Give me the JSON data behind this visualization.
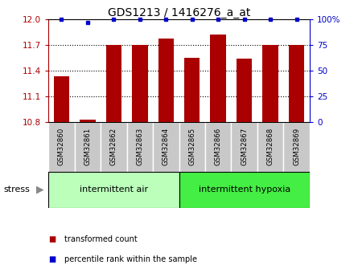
{
  "title": "GDS1213 / 1416276_a_at",
  "samples": [
    "GSM32860",
    "GSM32861",
    "GSM32862",
    "GSM32863",
    "GSM32864",
    "GSM32865",
    "GSM32866",
    "GSM32867",
    "GSM32868",
    "GSM32869"
  ],
  "bar_values": [
    11.33,
    10.83,
    11.7,
    11.7,
    11.78,
    11.55,
    11.82,
    11.54,
    11.7,
    11.7
  ],
  "percentile_values": [
    100,
    97,
    100,
    100,
    100,
    100,
    100,
    100,
    100,
    100
  ],
  "bar_color": "#aa0000",
  "percentile_color": "#0000cc",
  "ylim": [
    10.8,
    12.0
  ],
  "yticks_left": [
    10.8,
    11.1,
    11.4,
    11.7,
    12.0
  ],
  "yticks_right": [
    0,
    25,
    50,
    75,
    100
  ],
  "group1_label": "intermittent air",
  "group2_label": "intermittent hypoxia",
  "group1_indices": [
    0,
    1,
    2,
    3,
    4
  ],
  "group2_indices": [
    5,
    6,
    7,
    8,
    9
  ],
  "group1_color": "#bbffbb",
  "group2_color": "#44ee44",
  "stress_label": "stress",
  "legend_bar_label": "transformed count",
  "legend_pct_label": "percentile rank within the sample",
  "background_gray": "#c8c8c8",
  "gridline_color": "black",
  "gridline_yticks": [
    11.1,
    11.4,
    11.7
  ]
}
